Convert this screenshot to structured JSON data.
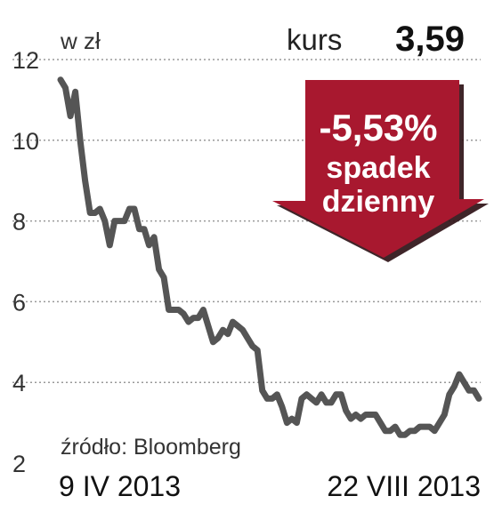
{
  "chart_data": {
    "type": "line",
    "unit_label": "w zł",
    "price_label": "kurs",
    "price_value": "3,59",
    "change_value": "-5,53%",
    "change_line1": "spadek",
    "change_line2": "dzienny",
    "source": "źródło: Bloomberg",
    "x_start_label": "9 IV 2013",
    "x_end_label": "22 VIII 2013",
    "ylim": [
      2,
      12
    ],
    "yticks": [
      12,
      10,
      8,
      6,
      4,
      2
    ],
    "series": [
      {
        "values": [
          11.5,
          11.3,
          10.6,
          11.2,
          10.0,
          9.0,
          8.2,
          8.2,
          8.3,
          8.0,
          7.4,
          8.0,
          8.0,
          8.0,
          8.3,
          8.3,
          7.8,
          7.8,
          7.4,
          7.6,
          6.8,
          6.6,
          5.8,
          5.8,
          5.8,
          5.7,
          5.5,
          5.6,
          5.6,
          5.8,
          5.4,
          5.0,
          5.1,
          5.3,
          5.2,
          5.5,
          5.4,
          5.3,
          5.1,
          4.9,
          4.8,
          3.8,
          3.6,
          3.6,
          3.7,
          3.4,
          3.0,
          3.1,
          3.0,
          3.6,
          3.7,
          3.6,
          3.5,
          3.7,
          3.5,
          3.5,
          3.7,
          3.7,
          3.3,
          3.1,
          3.2,
          3.1,
          3.2,
          3.2,
          3.2,
          3.0,
          2.8,
          2.8,
          2.9,
          2.7,
          2.7,
          2.8,
          2.8,
          2.9,
          2.9,
          2.9,
          2.8,
          3.0,
          3.2,
          3.7,
          3.9,
          4.2,
          4.0,
          3.8,
          3.8,
          3.6
        ]
      }
    ]
  }
}
